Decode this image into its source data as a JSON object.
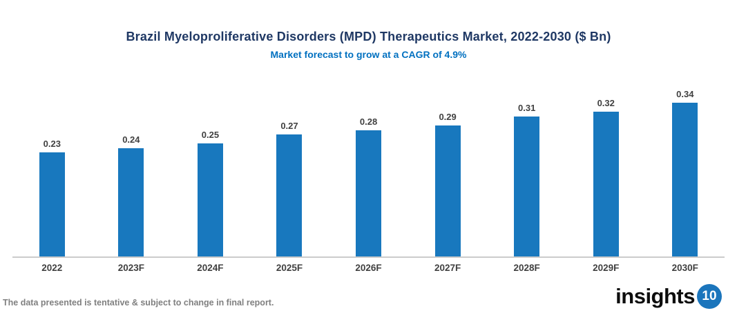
{
  "chart_data": {
    "type": "bar",
    "title": "Brazil Myeloproliferative Disorders (MPD) Therapeutics Market, 2022-2030 ($ Bn)",
    "subtitle": "Market forecast to grow at a CAGR of 4.9%",
    "categories": [
      "2022",
      "2023F",
      "2024F",
      "2025F",
      "2026F",
      "2027F",
      "2028F",
      "2029F",
      "2030F"
    ],
    "values": [
      0.23,
      0.24,
      0.25,
      0.27,
      0.28,
      0.29,
      0.31,
      0.32,
      0.34
    ],
    "xlabel": "",
    "ylabel": "",
    "ylim": [
      0,
      0.4
    ],
    "grid": false,
    "legend": "none",
    "value_labels": true
  },
  "footer": {
    "note": "The data presented is tentative & subject to change in final report.",
    "logo": {
      "text": "insights",
      "badge": "10"
    }
  },
  "colors": {
    "title": "#1F3864",
    "subtitle": "#0070C0",
    "bar": "#1878BE",
    "axis_line": "#CBCBCB",
    "tick_label": "#404040",
    "value_label": "#404040",
    "footer_note": "#808080",
    "logo_text": "#0D0D0D",
    "logo_badge_bg": "#1B75BC",
    "logo_badge_text": "#FFFFFF"
  }
}
